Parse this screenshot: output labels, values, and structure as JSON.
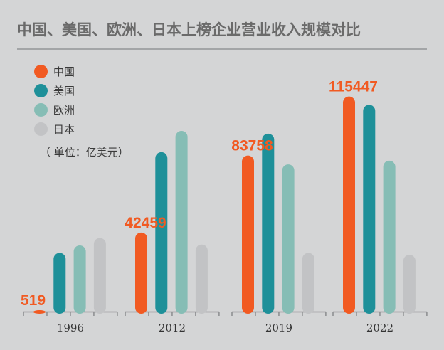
{
  "chart_data": {
    "type": "bar",
    "title": "中国、美国、欧洲、日本上榜企业营业收入规模对比",
    "unit_note": "（ 单位：亿美元）",
    "categories": [
      "1996",
      "2012",
      "2019",
      "2022"
    ],
    "series": [
      {
        "name": "中国",
        "color": "#f15a22",
        "values": [
          519,
          42459,
          83758,
          115447
        ]
      },
      {
        "name": "美国",
        "color": "#1e9099",
        "values": [
          31500,
          85600,
          95500,
          111000
        ]
      },
      {
        "name": "欧洲",
        "color": "#86bdb5",
        "values": [
          35500,
          97000,
          79000,
          81000
        ]
      },
      {
        "name": "日本",
        "color": "#c2c3c5",
        "values": [
          39500,
          36000,
          31500,
          30500
        ]
      }
    ],
    "data_labels": {
      "series": "中国",
      "color": "#f15a22"
    },
    "ylim": [
      0,
      118000
    ],
    "legend_position": "top-left",
    "grid": false
  }
}
